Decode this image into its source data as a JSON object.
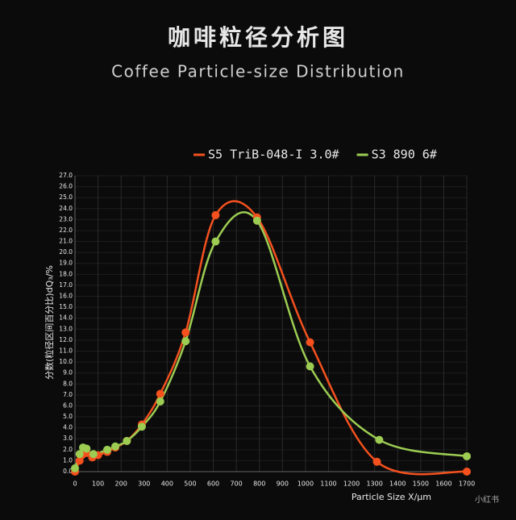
{
  "chart_data": {
    "type": "line",
    "title": "咖啡粒径分析图",
    "subtitle": "Coffee Particle-size Distribution",
    "x_label": "Particle Size X/μm",
    "y_label": "分数(粒径区间百分比)dQ₃/%",
    "watermark": "小红书",
    "grid": true,
    "legend": "top-right",
    "xlim": [
      0,
      1700
    ],
    "xticks": [
      0,
      100,
      200,
      300,
      400,
      500,
      600,
      700,
      800,
      900,
      1000,
      1100,
      1200,
      1300,
      1400,
      1500,
      1600,
      1700
    ],
    "ylim": [
      0,
      27
    ],
    "yticks": [
      {
        "value": 0,
        "label": "0.0"
      },
      {
        "value": 1,
        "label": "1.0"
      },
      {
        "value": 2,
        "label": "2.0"
      },
      {
        "value": 3,
        "label": "3.0"
      },
      {
        "value": 4,
        "label": "4.0"
      },
      {
        "value": 5,
        "label": "5.0"
      },
      {
        "value": 6,
        "label": "6.0"
      },
      {
        "value": 7,
        "label": "7.0"
      },
      {
        "value": 8,
        "label": "8.0"
      },
      {
        "value": 9,
        "label": "9.0"
      },
      {
        "value": 10,
        "label": "10.0"
      },
      {
        "value": 11,
        "label": "11.0"
      },
      {
        "value": 12,
        "label": "12.0"
      },
      {
        "value": 13,
        "label": "13.0"
      },
      {
        "value": 14,
        "label": "14.0"
      },
      {
        "value": 15,
        "label": "15.0"
      },
      {
        "value": 16,
        "label": "16.0"
      },
      {
        "value": 17,
        "label": "17.0"
      },
      {
        "value": 18,
        "label": "18.0"
      },
      {
        "value": 19,
        "label": "19.0"
      },
      {
        "value": 20,
        "label": "20.0"
      },
      {
        "value": 21,
        "label": "21.0"
      },
      {
        "value": 22,
        "label": "22.0"
      },
      {
        "value": 23,
        "label": "23.0"
      },
      {
        "value": 24,
        "label": "24.0"
      },
      {
        "value": 25,
        "label": "25.0"
      },
      {
        "value": 26,
        "label": "26.0"
      },
      {
        "value": 27,
        "label": "27.0"
      }
    ],
    "series": [
      {
        "name": "S5 TriB-048-I 3.0#",
        "color": "#f4511e",
        "x": [
          0,
          20,
          30,
          50,
          75,
          100,
          140,
          175,
          225,
          290,
          370,
          480,
          610,
          790,
          1020,
          1310,
          1700
        ],
        "values": [
          0,
          1.0,
          1.5,
          1.7,
          1.3,
          1.5,
          1.8,
          2.2,
          2.8,
          4.3,
          7.1,
          12.7,
          23.4,
          23.2,
          11.8,
          0.9,
          0
        ]
      },
      {
        "name": "S3 890 6#",
        "color": "#9ccc52",
        "x": [
          0,
          20,
          35,
          50,
          80,
          140,
          175,
          225,
          290,
          370,
          480,
          610,
          790,
          1020,
          1320,
          1700
        ],
        "values": [
          0.3,
          1.6,
          2.2,
          2.1,
          1.6,
          2.0,
          2.3,
          2.8,
          4.1,
          6.4,
          11.9,
          21.0,
          22.9,
          9.6,
          2.9,
          1.4
        ]
      }
    ]
  }
}
